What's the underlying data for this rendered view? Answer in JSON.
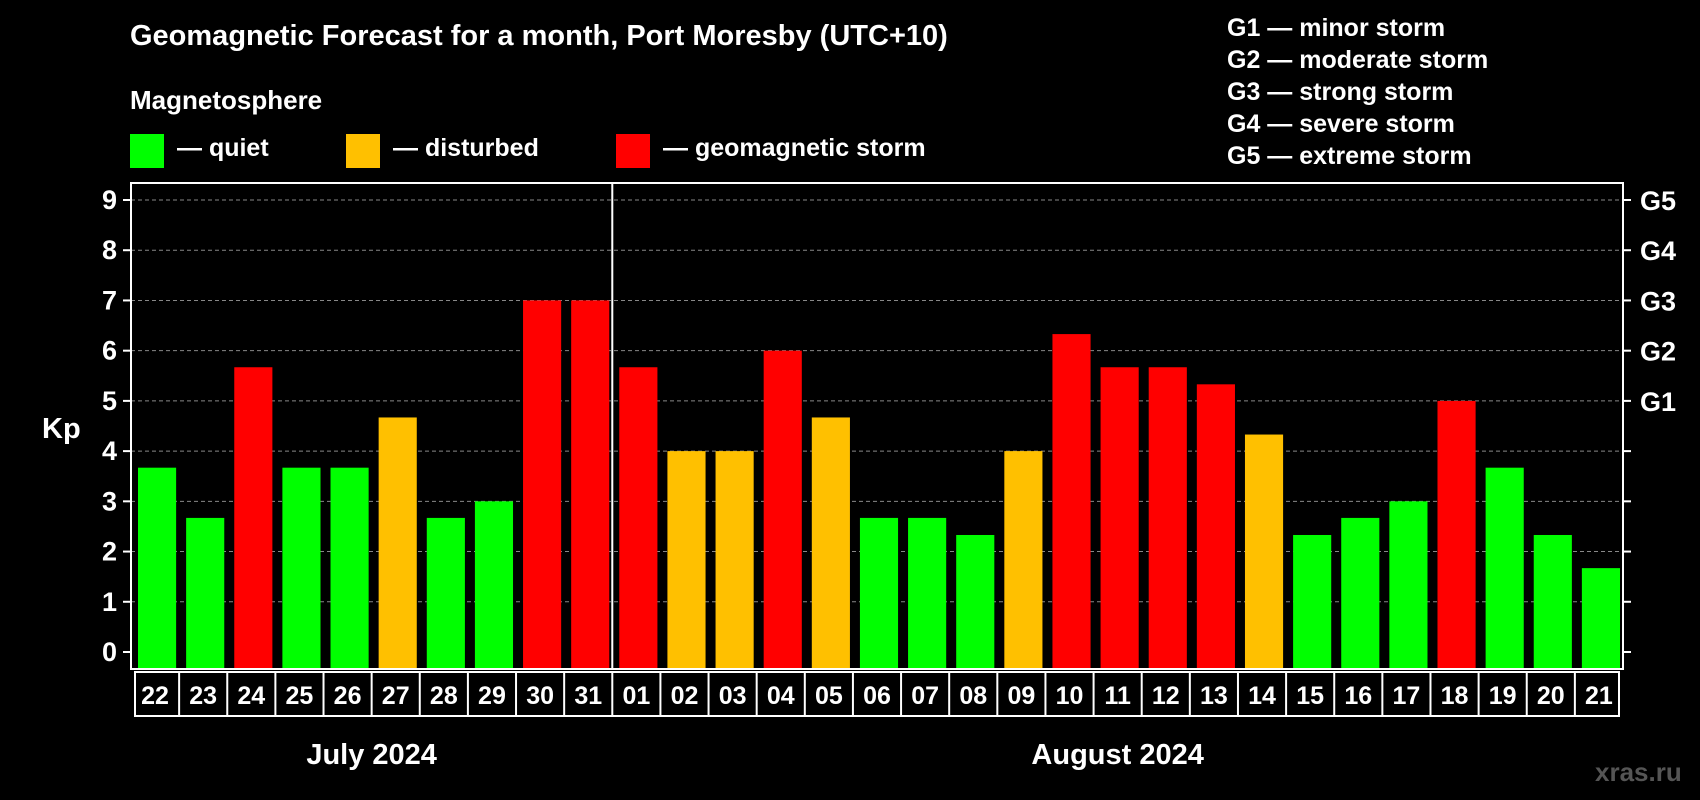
{
  "title": "Geomagnetic Forecast for a month, Port Moresby (UTC+10)",
  "subtitle": "Magnetosphere",
  "legend": [
    {
      "label": "— quiet",
      "color": "#00ff00"
    },
    {
      "label": "— disturbed",
      "color": "#ffc000"
    },
    {
      "label": "— geomagnetic storm",
      "color": "#ff0000"
    }
  ],
  "g_legend": [
    "G1 — minor storm",
    "G2 — moderate storm",
    "G3 — strong storm",
    "G4 — severe storm",
    "G5 — extreme storm"
  ],
  "watermark": "xras.ru",
  "chart_data": {
    "type": "bar",
    "ylabel": "Kp",
    "ylim": [
      0,
      9
    ],
    "yticks": [
      0,
      1,
      2,
      3,
      4,
      5,
      6,
      7,
      8,
      9
    ],
    "right_axis_labels": [
      {
        "kp": 5,
        "label": "G1"
      },
      {
        "kp": 6,
        "label": "G2"
      },
      {
        "kp": 7,
        "label": "G3"
      },
      {
        "kp": 8,
        "label": "G4"
      },
      {
        "kp": 9,
        "label": "G5"
      }
    ],
    "grid": "dashed horizontal",
    "months": [
      {
        "label": "July 2024",
        "first_index": 0,
        "last_index": 9
      },
      {
        "label": "August 2024",
        "first_index": 10,
        "last_index": 30
      }
    ],
    "categories": [
      "22",
      "23",
      "24",
      "25",
      "26",
      "27",
      "28",
      "29",
      "30",
      "31",
      "01",
      "02",
      "03",
      "04",
      "05",
      "06",
      "07",
      "08",
      "09",
      "10",
      "11",
      "12",
      "13",
      "14",
      "15",
      "16",
      "17",
      "18",
      "19",
      "20",
      "21"
    ],
    "values": [
      3.67,
      2.67,
      5.67,
      3.67,
      3.67,
      4.67,
      2.67,
      3,
      7,
      7,
      5.67,
      4,
      4,
      6,
      4.67,
      2.67,
      2.67,
      2.33,
      4,
      6.33,
      5.67,
      5.67,
      5.33,
      4.33,
      2.33,
      2.67,
      3,
      5,
      3.67,
      2.33,
      1.67
    ],
    "status": [
      "quiet",
      "quiet",
      "storm",
      "quiet",
      "quiet",
      "disturbed",
      "quiet",
      "quiet",
      "storm",
      "storm",
      "storm",
      "disturbed",
      "disturbed",
      "storm",
      "disturbed",
      "quiet",
      "quiet",
      "quiet",
      "disturbed",
      "storm",
      "storm",
      "storm",
      "storm",
      "disturbed",
      "quiet",
      "quiet",
      "quiet",
      "storm",
      "quiet",
      "quiet",
      "quiet"
    ],
    "colors": {
      "quiet": "#00ff00",
      "disturbed": "#ffc000",
      "storm": "#ff0000"
    }
  }
}
